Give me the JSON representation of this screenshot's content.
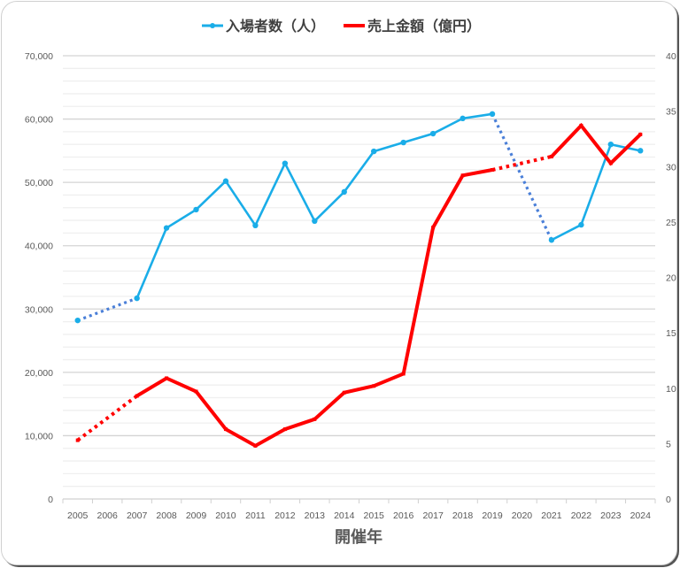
{
  "chart_data": {
    "type": "line",
    "title": "",
    "xlabel": "開催年",
    "ylabel": "",
    "categories": [
      "2005",
      "2006",
      "2007",
      "2008",
      "2009",
      "2010",
      "2011",
      "2012",
      "2013",
      "2014",
      "2015",
      "2016",
      "2017",
      "2018",
      "2019",
      "2020",
      "2021",
      "2022",
      "2023",
      "2024"
    ],
    "series": [
      {
        "name": "入場者数（人）",
        "axis": "left",
        "color": "#1AADE8",
        "gap_color": "#4A7FD8",
        "values": [
          28200,
          null,
          31700,
          42800,
          45700,
          50200,
          43200,
          53000,
          43900,
          48500,
          54900,
          56300,
          57700,
          60100,
          60800,
          null,
          40900,
          43300,
          56000,
          55000
        ]
      },
      {
        "name": "売上金額（億円）",
        "axis": "right",
        "color": "#FF0000",
        "gap_color": "#FF0000",
        "values": [
          5.3,
          null,
          9.3,
          10.9,
          9.7,
          6.3,
          4.8,
          6.3,
          7.2,
          9.6,
          10.2,
          11.3,
          24.5,
          29.2,
          29.7,
          null,
          30.9,
          33.7,
          30.3,
          32.9
        ]
      }
    ],
    "y_left": {
      "min": 0,
      "max": 70000,
      "major_step": 10000,
      "minor_step": 2000,
      "tick_labels": [
        "0",
        "10,000",
        "20,000",
        "30,000",
        "40,000",
        "50,000",
        "60,000",
        "70,000"
      ]
    },
    "y_right": {
      "min": 0,
      "max": 40,
      "major_step": 5,
      "tick_labels": [
        "0",
        "5",
        "10",
        "15",
        "20",
        "25",
        "30",
        "35",
        "40"
      ]
    },
    "grid": true,
    "legend_position": "top",
    "gap_style": "dotted line connects across missing years (2006, 2020)"
  },
  "legend": {
    "items": [
      {
        "label": "入場者数（人）",
        "color": "#1AADE8"
      },
      {
        "label": "売上金額（億円）",
        "color": "#FF0000"
      }
    ]
  }
}
